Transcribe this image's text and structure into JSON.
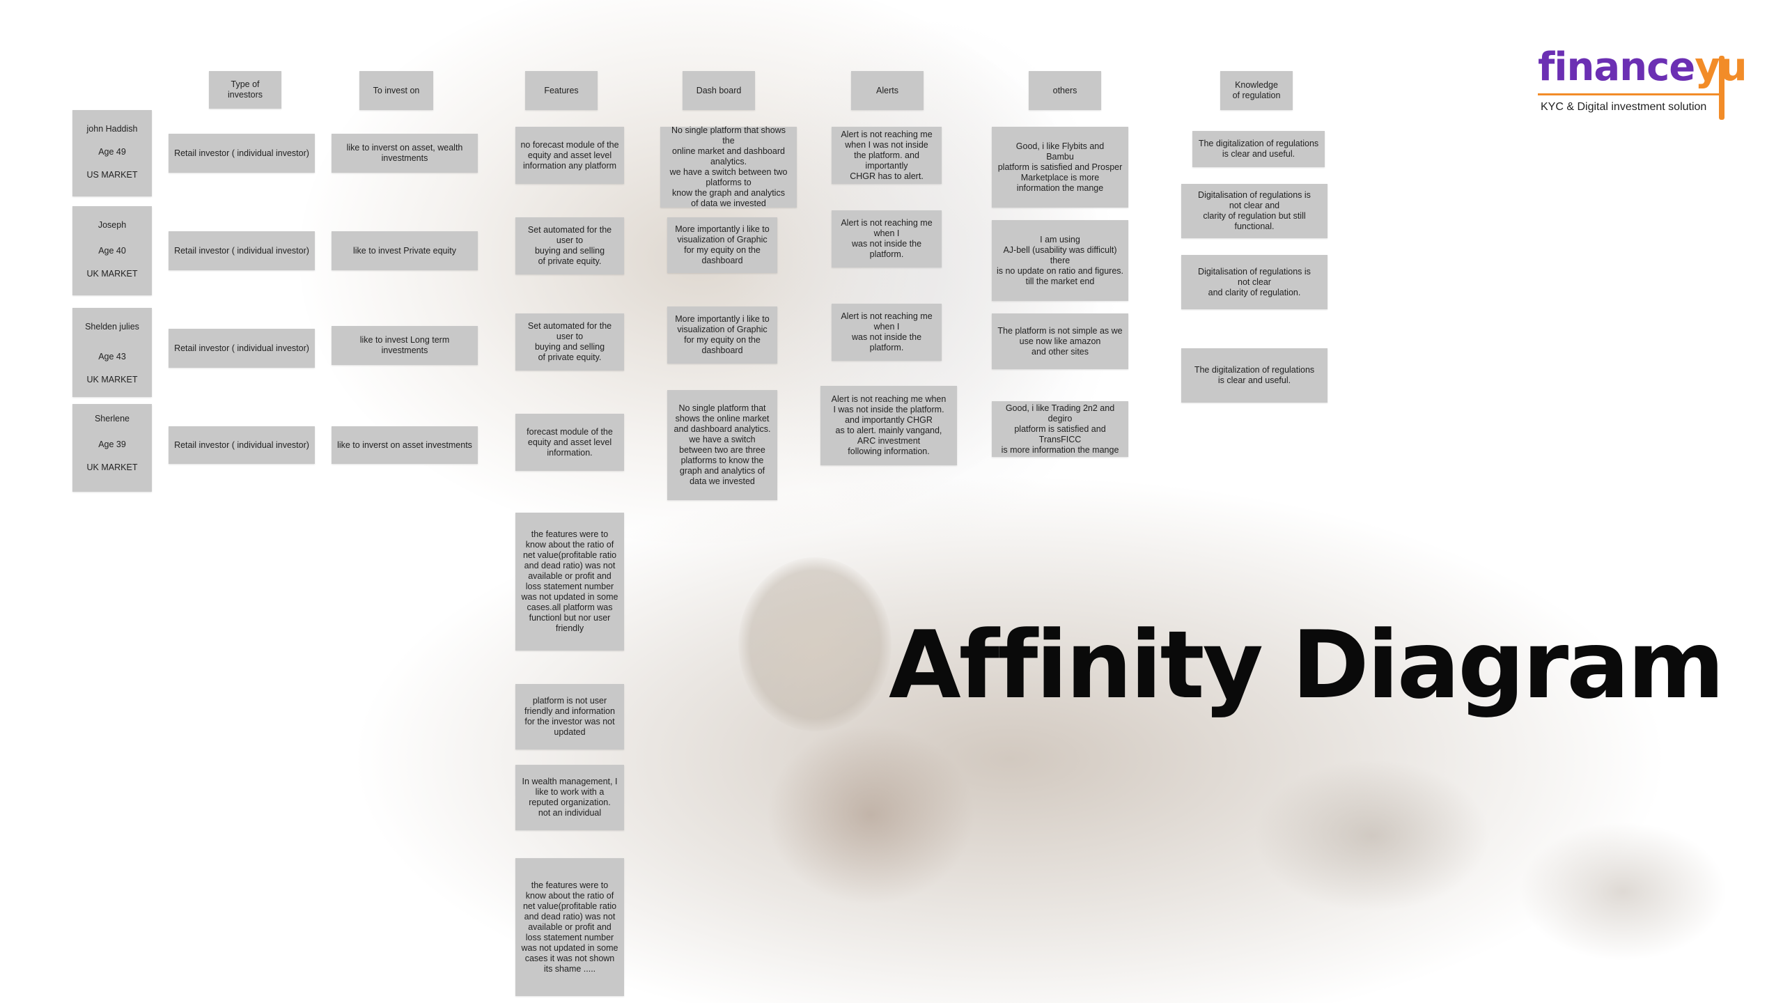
{
  "logo": {
    "wordmark": "finance",
    "wordmark_suffix": "yu",
    "tagline": "KYC & Digital investment solution"
  },
  "title": "Affinity Diagram",
  "headers": {
    "type_of_investors": "Type of investors",
    "to_invest_on": "To invest on",
    "features": "Features",
    "dashboard": "Dash board",
    "alerts": "Alerts",
    "others": "others",
    "knowledge": "Knowledge\nof regulation"
  },
  "personas": [
    {
      "name": "john Haddish",
      "age": "Age 49",
      "market": "US MARKET"
    },
    {
      "name": "Joseph",
      "age": "Age 40",
      "market": "UK MARKET"
    },
    {
      "name": "Shelden julies",
      "age": "Age 43",
      "market": "UK MARKET"
    },
    {
      "name": "Sherlene",
      "age": "Age 39",
      "market": "UK MARKET"
    }
  ],
  "type_of_investors": [
    "Retail investor ( individual investor)",
    "Retail investor ( individual investor)",
    "Retail investor ( individual investor)",
    "Retail investor ( individual investor)"
  ],
  "to_invest_on": [
    "like to inverst on asset, wealth\ninvestments",
    "like to invest Private equity",
    "like to invest Long term investments",
    "like to inverst on asset  investments"
  ],
  "features": [
    "no forecast module of the\nequity and asset level\ninformation any platform",
    "Set automated  for the\nuser to\nbuying and selling\nof private equity.",
    "Set automated  for the\nuser to\nbuying and selling\nof private equity.",
    "forecast module of the\nequity and asset level\ninformation.",
    "the features were to\nknow about the ratio of\nnet value(profitable ratio\nand dead ratio) was not\navailable or profit and\nloss statement number\nwas not updated in some\ncases.all platform was\nfunctionl but nor user\nfriendly",
    "platform is not user\nfriendly and information\nfor the investor was not\nupdated",
    "In wealth management, I\nlike to work with a\nreputed organization.\nnot an individual",
    "the features were to\nknow about the ratio of\nnet value(profitable ratio\nand dead ratio) was not\navailable or profit and\nloss statement number\nwas not updated in some\ncases it was not shown\nits shame ....."
  ],
  "dashboard": [
    "No single platform that shows the\nonline market and dashboard\nanalytics.\nwe have a switch between two\nplatforms to\nknow the graph and analytics\nof data we invested",
    "More importantly i like to\nvisualization of Graphic\nfor my equity on the\ndashboard",
    "More importantly i like to\nvisualization of Graphic\nfor my equity on the\ndashboard",
    "No single platform that\nshows the online market\nand dashboard analytics.\nwe have a switch\nbetween two are three\nplatforms to know the\ngraph and analytics of\ndata we invested"
  ],
  "alerts": [
    "Alert is not reaching me\nwhen I was not inside\nthe platform. and importantly\nCHGR has to alert.",
    "Alert is not reaching me\nwhen I\nwas not inside the\nplatform.",
    "Alert is not reaching me\nwhen I\nwas not inside the\nplatform.",
    "Alert is not reaching me when\nI was not inside the platform.\nand importantly CHGR\nas to alert. mainly vangand,\nARC investment\nfollowing information."
  ],
  "others": [
    "Good, i like Flybits and\nBambu\nplatform  is satisfied and Prosper\nMarketplace is more\ninformation the mange",
    "I am using\nAJ-bell (usability was difficult)\nthere\nis no update on ratio and figures.\ntill the market end",
    "The platform is not simple as we\nuse now like amazon\nand other sites",
    "Good, i like Trading 2n2 and degiro\nplatform  is satisfied and TransFICC\nis more information the mange"
  ],
  "knowledge": [
    "The digitalization of regulations\nis clear and useful.",
    "Digitalisation of regulations is\nnot clear and\nclarity of regulation but still functional.",
    "Digitalisation of regulations is\nnot clear\nand clarity of regulation.",
    "The digitalization of regulations\nis clear and useful."
  ],
  "colors": {
    "note": "#c8c8c8",
    "brand_purple": "#6b2fb3",
    "brand_orange": "#f28c28",
    "title": "#0a0a0a"
  }
}
